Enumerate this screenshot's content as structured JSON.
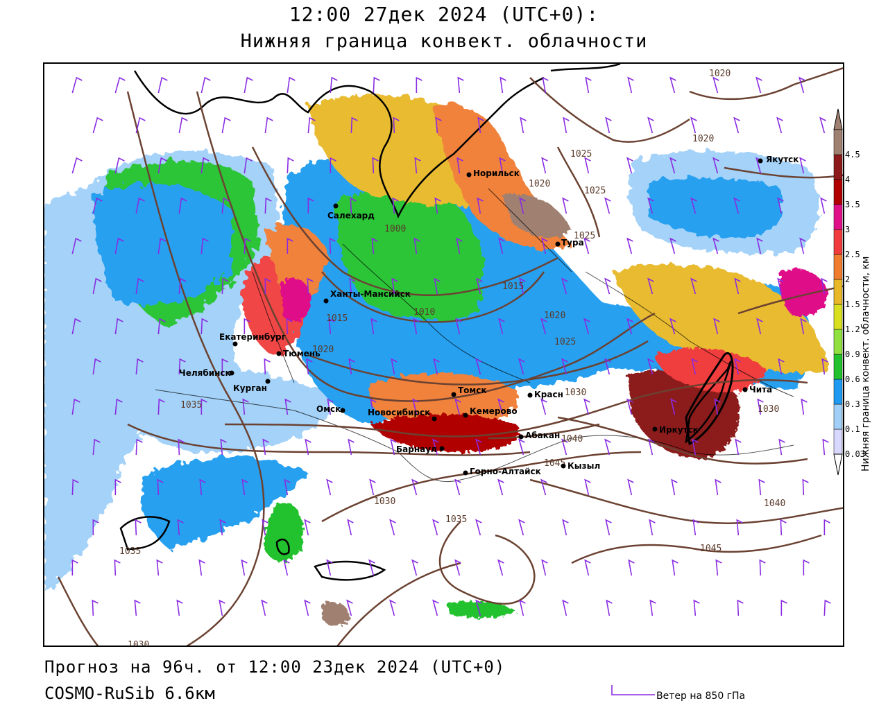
{
  "header": {
    "datetime": "12:00 27дек 2024 (UTC+0):",
    "parameter": "Нижняя граница конвект. облачности"
  },
  "footer": {
    "forecast": "Прогноз на 96ч. от 12:00 23дек 2024 (UTC+0)",
    "model": "COSMO-RuSib 6.6км",
    "wind_label": "Ветер на 850 гПа"
  },
  "legend": {
    "title": "Нижняя граница конвект. облачности, км",
    "levels": [
      "0.03",
      "0.1",
      "0.3",
      "0.6",
      "0.9",
      "1.2",
      "1.5",
      "2",
      "2.5",
      "3",
      "3.5",
      "4",
      "4.5"
    ],
    "colors": [
      "#d8d8ff",
      "#a0d0f8",
      "#1e9bf0",
      "#22c22e",
      "#90e040",
      "#d8e020",
      "#e8b828",
      "#f07c30",
      "#f03c3c",
      "#e01088",
      "#b00000",
      "#8c1a1a",
      "#a08070"
    ]
  },
  "cities": [
    {
      "name": "Салехард"
    },
    {
      "name": "Норильск"
    },
    {
      "name": "Тура"
    },
    {
      "name": "Якутск"
    },
    {
      "name": "Ханты-Мансийск"
    },
    {
      "name": "Екатеринбург"
    },
    {
      "name": "Тюмень"
    },
    {
      "name": "Челябинск"
    },
    {
      "name": "Курган"
    },
    {
      "name": "Омск"
    },
    {
      "name": "Новосибирск"
    },
    {
      "name": "Томск"
    },
    {
      "name": "Кемерово"
    },
    {
      "name": "Красн"
    },
    {
      "name": "Абакан"
    },
    {
      "name": "Барнаул"
    },
    {
      "name": "Горно-Алтайск"
    },
    {
      "name": "Кызыл"
    },
    {
      "name": "Иркутск"
    },
    {
      "name": "Чита"
    }
  ],
  "isobars": [
    "1020",
    "1020",
    "1025",
    "1020",
    "1025",
    "1025",
    "1000",
    "1015",
    "1015",
    "1010",
    "1020",
    "1025",
    "1020",
    "1030",
    "1035",
    "1040",
    "1045",
    "1040",
    "1045",
    "1030",
    "1035",
    "1035",
    "1030",
    "1030"
  ]
}
